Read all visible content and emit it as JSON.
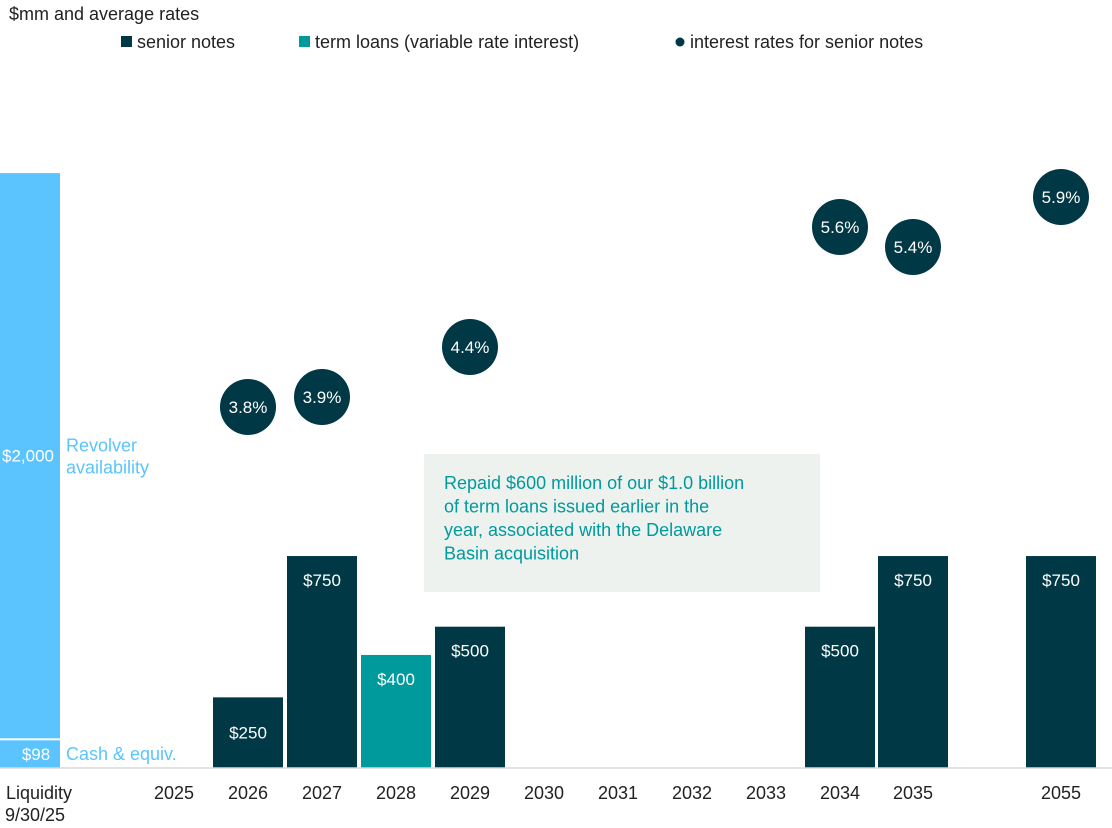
{
  "chart_data": {
    "type": "bar",
    "title": "$mm and average rates",
    "legend": [
      {
        "name": "senior notes",
        "marker": "square",
        "color": "#003845"
      },
      {
        "name": "term loans (variable rate interest)",
        "marker": "square",
        "color": "#009a9c"
      },
      {
        "name": "interest rates for senior notes",
        "marker": "circle",
        "color": "#003845"
      }
    ],
    "legend_position": "top",
    "ylim": [
      0,
      2100
    ],
    "grid": false,
    "liquidity": {
      "category": "Liquidity\n9/30/25",
      "segments": [
        {
          "value": 98,
          "label": "$98",
          "annotation": "Cash & equiv.",
          "color": "#5bc4ff"
        },
        {
          "value": 2000,
          "label": "$2,000",
          "annotation": "Revolver availability",
          "color": "#5bc4ff"
        }
      ]
    },
    "categories": [
      "2025",
      "2026",
      "2027",
      "2028",
      "2029",
      "2030",
      "2031",
      "2032",
      "2033",
      "2034",
      "2035",
      "2055"
    ],
    "series": [
      {
        "name": "senior notes",
        "color": "#003845",
        "values": [
          0,
          250,
          750,
          0,
          500,
          0,
          0,
          0,
          0,
          500,
          750,
          750
        ],
        "labels": [
          "",
          "$250",
          "$750",
          "",
          "$500",
          "",
          "",
          "",
          "",
          "$500",
          "$750",
          "$750"
        ]
      },
      {
        "name": "term loans (variable rate interest)",
        "color": "#009a9c",
        "values": [
          0,
          0,
          0,
          400,
          0,
          0,
          0,
          0,
          0,
          0,
          0,
          0
        ],
        "labels": [
          "",
          "",
          "",
          "$400",
          "",
          "",
          "",
          "",
          "",
          "",
          "",
          ""
        ]
      },
      {
        "name": "interest rates for senior notes",
        "color": "#003845",
        "values": [
          null,
          3.8,
          3.9,
          null,
          4.4,
          null,
          null,
          null,
          null,
          5.6,
          5.4,
          5.9
        ],
        "labels": [
          "",
          "3.8%",
          "3.9%",
          "",
          "4.4%",
          "",
          "",
          "",
          "",
          "5.6%",
          "5.4%",
          "5.9%"
        ]
      }
    ],
    "annotations": [
      {
        "text": "Repaid $600 million of our $1.0 billion of term loans issued earlier in the year, associated with the Delaware Basin acquisition",
        "lines": [
          "Repaid $600 million of our $1.0 billion",
          "of term loans issued earlier in the",
          "year, associated with the Delaware",
          "Basin acquisition"
        ],
        "color": "#009a9c",
        "background": "#eef2ef"
      }
    ]
  }
}
